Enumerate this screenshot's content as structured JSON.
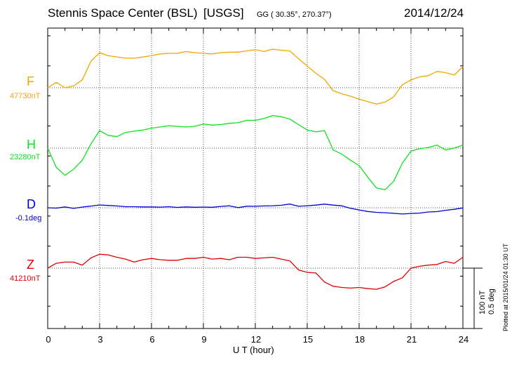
{
  "header": {
    "station": "Stennis Space Center (BSL)",
    "agency": "[USGS]",
    "coords": "GG ( 30.35°, 270.37°)",
    "date": "2014/12/24"
  },
  "scale_note": {
    "nt": "100 nT",
    "deg": "0.5 deg"
  },
  "plotted_note": "Plotted at 2015/01/24 01:30 UT",
  "colors": {
    "F": "#f0a800",
    "H": "#10e020",
    "D": "#0000d0",
    "Z": "#e00000"
  },
  "chart_data": {
    "type": "line",
    "xlabel": "U T (hour)",
    "xlim": [
      0,
      24
    ],
    "xticks": [
      "0",
      "3",
      "6",
      "9",
      "12",
      "15",
      "18",
      "21",
      "24"
    ],
    "grid": true,
    "x": [
      0,
      0.5,
      1,
      1.5,
      2,
      2.5,
      3,
      3.5,
      4,
      4.5,
      5,
      5.5,
      6,
      6.5,
      7,
      7.5,
      8,
      8.5,
      9,
      9.5,
      10,
      10.5,
      11,
      11.5,
      12,
      12.5,
      13,
      13.5,
      14,
      14.5,
      15,
      15.5,
      16,
      16.5,
      17,
      17.5,
      18,
      18.5,
      19,
      19.5,
      20,
      20.5,
      21,
      21.5,
      22,
      22.5,
      23,
      23.5,
      24
    ],
    "series": [
      {
        "name": "F",
        "base_label": "47730nT",
        "values": [
          47730,
          47739,
          47730,
          47733,
          47743,
          47774,
          47788,
          47783,
          47781,
          47779,
          47779,
          47781,
          47783,
          47786,
          47787,
          47787,
          47790,
          47788,
          47787,
          47786,
          47788,
          47789,
          47789,
          47791,
          47793,
          47790,
          47794,
          47792,
          47791,
          47778,
          47766,
          47754,
          47744,
          47725,
          47720,
          47716,
          47711,
          47707,
          47703,
          47706,
          47715,
          47735,
          47743,
          47748,
          47750,
          47757,
          47755,
          47751,
          47765
        ]
      },
      {
        "name": "H",
        "base_label": "23280nT",
        "values": [
          23295,
          23263,
          23250,
          23260,
          23275,
          23302,
          23324,
          23316,
          23314,
          23321,
          23323,
          23325,
          23328,
          23330,
          23332,
          23331,
          23330,
          23331,
          23335,
          23333,
          23334,
          23336,
          23337,
          23341,
          23341,
          23344,
          23349,
          23347,
          23343,
          23334,
          23325,
          23322,
          23324,
          23292,
          23285,
          23275,
          23266,
          23247,
          23229,
          23226,
          23240,
          23270,
          23290,
          23294,
          23296,
          23300,
          23292,
          23295,
          23300
        ]
      },
      {
        "name": "D",
        "base_label": "-0.1deg",
        "values": [
          -0.1,
          -0.103,
          -0.093,
          -0.105,
          -0.094,
          -0.086,
          -0.077,
          -0.081,
          -0.085,
          -0.091,
          -0.091,
          -0.093,
          -0.093,
          -0.095,
          -0.091,
          -0.097,
          -0.093,
          -0.096,
          -0.094,
          -0.096,
          -0.089,
          -0.084,
          -0.099,
          -0.087,
          -0.088,
          -0.085,
          -0.083,
          -0.079,
          -0.069,
          -0.088,
          -0.083,
          -0.078,
          -0.07,
          -0.078,
          -0.084,
          -0.104,
          -0.118,
          -0.131,
          -0.138,
          -0.141,
          -0.146,
          -0.152,
          -0.147,
          -0.144,
          -0.135,
          -0.132,
          -0.121,
          -0.113,
          -0.101
        ]
      },
      {
        "name": "Z",
        "base_label": "41210nT",
        "values": [
          41210,
          41218,
          41220,
          41220,
          41215,
          41227,
          41233,
          41232,
          41228,
          41225,
          41220,
          41224,
          41226,
          41224,
          41223,
          41223,
          41226,
          41226,
          41228,
          41225,
          41226,
          41224,
          41228,
          41228,
          41226,
          41227,
          41228,
          41225,
          41222,
          41207,
          41203,
          41202,
          41187,
          41180,
          41178,
          41177,
          41178,
          41176,
          41175,
          41179,
          41188,
          41194,
          41210,
          41213,
          41215,
          41216,
          41221,
          41218,
          41228
        ]
      }
    ]
  }
}
